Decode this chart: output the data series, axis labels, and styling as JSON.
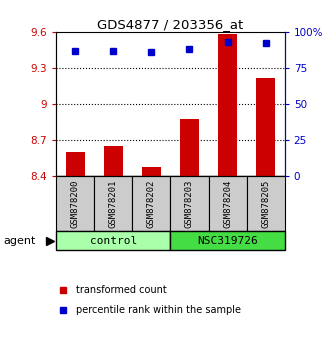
{
  "title": "GDS4877 / 203356_at",
  "samples": [
    "GSM878200",
    "GSM878201",
    "GSM878202",
    "GSM878203",
    "GSM878204",
    "GSM878205"
  ],
  "bar_values": [
    8.6,
    8.65,
    8.48,
    8.88,
    9.58,
    9.22
  ],
  "dot_values": [
    87,
    87,
    86,
    88,
    93,
    92
  ],
  "ylim_left": [
    8.4,
    9.6
  ],
  "ylim_right": [
    0,
    100
  ],
  "yticks_left": [
    8.4,
    8.7,
    9.0,
    9.3,
    9.6
  ],
  "yticks_right": [
    0,
    25,
    50,
    75,
    100
  ],
  "ytick_labels_left": [
    "8.4",
    "8.7",
    "9",
    "9.3",
    "9.6"
  ],
  "ytick_labels_right": [
    "0",
    "25",
    "50",
    "75",
    "100%"
  ],
  "bar_color": "#cc0000",
  "dot_color": "#0000cc",
  "bar_bottom": 8.4,
  "groups": [
    {
      "label": "control",
      "samples": [
        0,
        1,
        2
      ],
      "color": "#aaffaa"
    },
    {
      "label": "NSC319726",
      "samples": [
        3,
        4,
        5
      ],
      "color": "#44dd44"
    }
  ],
  "agent_label": "agent",
  "legend_items": [
    {
      "color": "#cc0000",
      "label": "transformed count"
    },
    {
      "color": "#0000cc",
      "label": "percentile rank within the sample"
    }
  ],
  "left_color": "#cc0000",
  "right_color": "#0000cc"
}
